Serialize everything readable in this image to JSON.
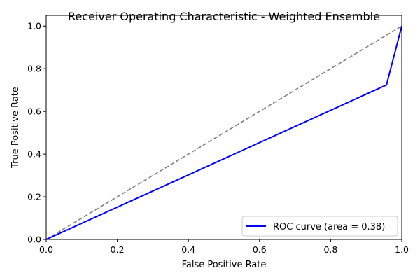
{
  "chart_data": {
    "type": "line",
    "title": "Receiver Operating Characteristic - Weighted Ensemble",
    "xlabel": "False Positive Rate",
    "ylabel": "True Positive Rate",
    "xlim": [
      0.0,
      1.0
    ],
    "ylim": [
      0.0,
      1.05
    ],
    "x_ticks": [
      "0.0",
      "0.2",
      "0.4",
      "0.6",
      "0.8",
      "1.0"
    ],
    "y_ticks": [
      "0.0",
      "0.2",
      "0.4",
      "0.6",
      "0.8",
      "1.0"
    ],
    "grid": false,
    "legend_position": "lower-right",
    "series": [
      {
        "name": "ROC curve (area = 0.38)",
        "color": "#0000ff",
        "style": "solid",
        "x": [
          0.0,
          0.957,
          1.0
        ],
        "y": [
          0.0,
          0.724,
          1.0
        ]
      },
      {
        "color": "#808080",
        "style": "dashed",
        "x": [
          0.0,
          1.0
        ],
        "y": [
          0.0,
          1.0
        ]
      }
    ]
  }
}
